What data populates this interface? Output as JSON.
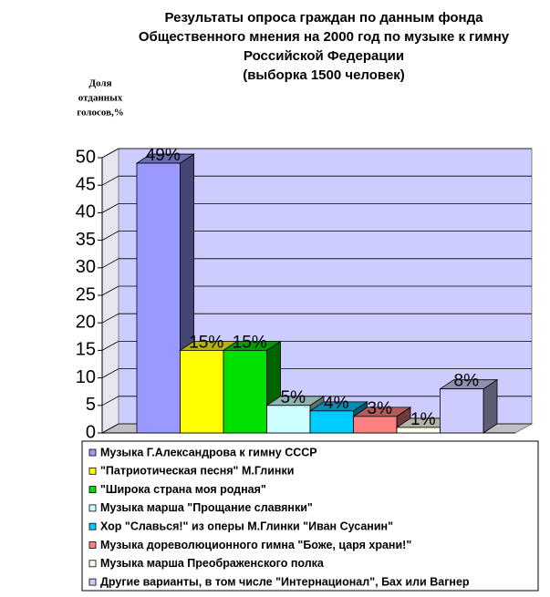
{
  "chart_data": {
    "type": "bar3d",
    "title": [
      "Результаты опроса граждан по данным фонда",
      "Общественного мнения на 2000 год по музыке к гимну",
      "Российской Федерации",
      "(выборка 1500 человек)"
    ],
    "ylabel": [
      "Доля",
      "отданных",
      "голосов,%"
    ],
    "ylim": [
      0,
      50
    ],
    "yticks": [
      0,
      5,
      10,
      15,
      20,
      25,
      30,
      35,
      40,
      45,
      50
    ],
    "grid": true,
    "legend": "bottom",
    "series": [
      {
        "name": "Музыка Г.Александрова к гимну СССР",
        "color": "#9999ff",
        "values": [
          49
        ],
        "value_labels": [
          "49%"
        ]
      },
      {
        "name": "\"Патриотическая песня\" М.Глинки",
        "color": "#ffff00",
        "values": [
          15
        ],
        "value_labels": [
          "15%"
        ]
      },
      {
        "name": "\"Широка страна моя родная\"",
        "color": "#00e000",
        "values": [
          15
        ],
        "value_labels": [
          "15%"
        ]
      },
      {
        "name": "Музыка марша \"Прощание славянки\"",
        "color": "#ccffff",
        "values": [
          5
        ],
        "value_labels": [
          "5%"
        ]
      },
      {
        "name": "Хор \"Славься!\" из оперы М.Глинки \"Иван Сусанин\"",
        "color": "#00ccff",
        "values": [
          4
        ],
        "value_labels": [
          "4%"
        ]
      },
      {
        "name": "Музыка дореволюционного гимна \"Боже, царя храни!\"",
        "color": "#ff8080",
        "values": [
          3
        ],
        "value_labels": [
          "3%"
        ]
      },
      {
        "name": "Музыка марша Преображенского полка",
        "color": "#ffffee",
        "values": [
          1
        ],
        "value_labels": [
          "1%"
        ]
      },
      {
        "name": "Другие варианты, в том числе \"Интернационал\", Бах или Вагнер",
        "color": "#ccccff",
        "values": [
          8
        ],
        "value_labels": [
          "8%"
        ]
      }
    ]
  }
}
